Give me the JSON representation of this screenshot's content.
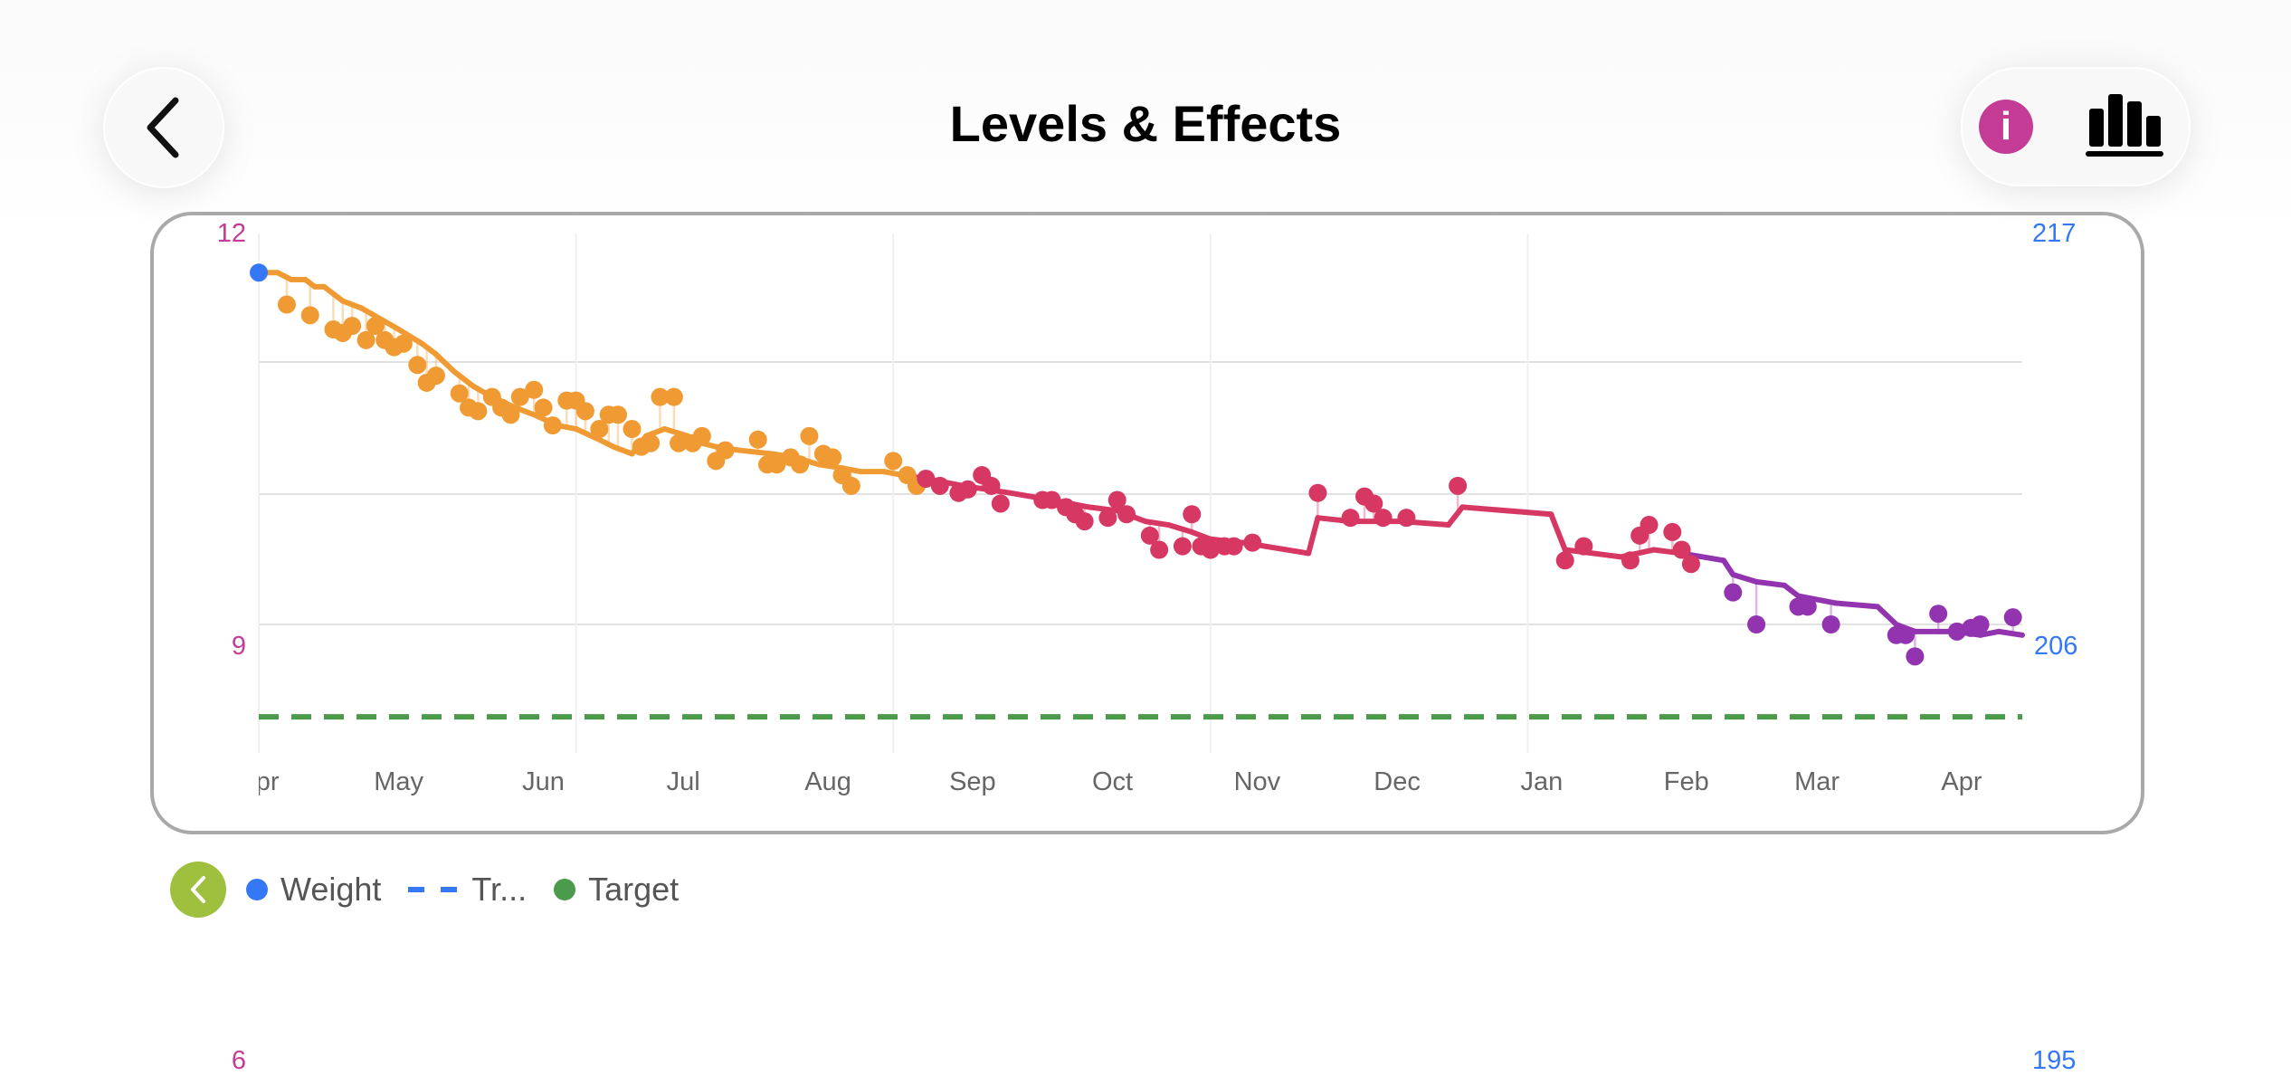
{
  "header": {
    "title": "Levels & Effects",
    "back_icon": "chevron-left-icon",
    "info_icon": "info-icon",
    "chart_icon": "bar-chart-icon"
  },
  "legend": {
    "collapse_icon": "chevron-left-icon",
    "items": [
      {
        "label": "Weight",
        "color": "#3478f6",
        "style": "dot"
      },
      {
        "label": "Tr...",
        "color": "#3478f6",
        "style": "dash"
      },
      {
        "label": "Target",
        "color": "#4c9a4c",
        "style": "dot"
      }
    ]
  },
  "next_chart_axis": {
    "left": "6",
    "right": "195"
  },
  "chart_data": {
    "type": "line",
    "left_axis": {
      "ticks": [
        "12",
        "9"
      ],
      "range": [
        12,
        9
      ],
      "color": "#c43c96"
    },
    "right_axis": {
      "ticks": [
        "217",
        "206"
      ],
      "ylim": [
        202.4,
        217
      ],
      "color": "#3478f6"
    },
    "x_labels": [
      "Apr",
      "May",
      "Jun",
      "Jul",
      "Aug",
      "Sep",
      "Oct",
      "Nov",
      "Dec",
      "Jan",
      "Feb",
      "Mar",
      "Apr"
    ],
    "xlim": [
      "Apr 1",
      "Apr 14"
    ],
    "grid": true,
    "target": 203.4,
    "target_color": "#4c9a4c",
    "start_marker_color": "#3478f6",
    "phase_colors": [
      "#f09a33",
      "#d63763",
      "#9233b0"
    ],
    "points": [
      [
        "Apr 7",
        215.0,
        0
      ],
      [
        "Apr 12",
        214.7,
        0
      ],
      [
        "Apr 17",
        214.3,
        0
      ],
      [
        "Apr 19",
        214.2,
        0
      ],
      [
        "Apr 21",
        214.4,
        0
      ],
      [
        "Apr 24",
        214.0,
        0
      ],
      [
        "Apr 26",
        214.4,
        0
      ],
      [
        "Apr 28",
        214.0,
        0
      ],
      [
        "Apr 30",
        213.8,
        0
      ],
      [
        "May 2",
        213.9,
        0
      ],
      [
        "May 5",
        213.3,
        0
      ],
      [
        "May 7",
        212.8,
        0
      ],
      [
        "May 9",
        213.0,
        0
      ],
      [
        "May 14",
        212.5,
        0
      ],
      [
        "May 16",
        212.1,
        0
      ],
      [
        "May 18",
        212.0,
        0
      ],
      [
        "May 21",
        212.4,
        0
      ],
      [
        "May 23",
        212.1,
        0
      ],
      [
        "May 25",
        211.9,
        0
      ],
      [
        "May 27",
        212.4,
        0
      ],
      [
        "May 30",
        212.6,
        0
      ],
      [
        "Jun 1",
        212.1,
        0
      ],
      [
        "Jun 3",
        211.6,
        0
      ],
      [
        "Jun 6",
        212.3,
        0
      ],
      [
        "Jun 8",
        212.3,
        0
      ],
      [
        "Jun 10",
        212.0,
        0
      ],
      [
        "Jun 13",
        211.5,
        0
      ],
      [
        "Jun 15",
        211.9,
        0
      ],
      [
        "Jun 17",
        211.9,
        0
      ],
      [
        "Jun 20",
        211.5,
        0
      ],
      [
        "Jun 22",
        211.0,
        0
      ],
      [
        "Jun 24",
        211.1,
        0
      ],
      [
        "Jun 26",
        212.4,
        0
      ],
      [
        "Jun 29",
        212.4,
        0
      ],
      [
        "Jun 30",
        211.1,
        0
      ],
      [
        "Jul 3",
        211.1,
        0
      ],
      [
        "Jul 5",
        211.3,
        0
      ],
      [
        "Jul 8",
        210.6,
        0
      ],
      [
        "Jul 10",
        210.9,
        0
      ],
      [
        "Jul 17",
        211.2,
        0
      ],
      [
        "Jul 19",
        210.5,
        0
      ],
      [
        "Jul 21",
        210.5,
        0
      ],
      [
        "Jul 24",
        210.7,
        0
      ],
      [
        "Jul 26",
        210.5,
        0
      ],
      [
        "Jul 28",
        211.3,
        0
      ],
      [
        "Jul 31",
        210.8,
        0
      ],
      [
        "Aug 2",
        210.7,
        0
      ],
      [
        "Aug 4",
        210.2,
        0
      ],
      [
        "Aug 6",
        209.9,
        0
      ],
      [
        "Aug 15",
        210.6,
        0
      ],
      [
        "Aug 18",
        210.2,
        0
      ],
      [
        "Aug 20",
        209.9,
        0
      ],
      [
        "Aug 22",
        210.1,
        1
      ],
      [
        "Aug 25",
        209.9,
        1
      ],
      [
        "Aug 29",
        209.7,
        1
      ],
      [
        "Aug 31",
        209.8,
        1
      ],
      [
        "Sep 3",
        210.2,
        1
      ],
      [
        "Sep 5",
        209.9,
        1
      ],
      [
        "Sep 7",
        209.4,
        1
      ],
      [
        "Sep 16",
        209.5,
        1
      ],
      [
        "Sep 18",
        209.5,
        1
      ],
      [
        "Sep 21",
        209.3,
        1
      ],
      [
        "Sep 23",
        209.1,
        1
      ],
      [
        "Sep 25",
        208.9,
        1
      ],
      [
        "Sep 30",
        209.0,
        1
      ],
      [
        "Oct 2",
        209.5,
        1
      ],
      [
        "Oct 4",
        209.1,
        1
      ],
      [
        "Oct 9",
        208.5,
        1
      ],
      [
        "Oct 11",
        208.1,
        1
      ],
      [
        "Oct 16",
        208.2,
        1
      ],
      [
        "Oct 18",
        209.1,
        1
      ],
      [
        "Oct 20",
        208.2,
        1
      ],
      [
        "Oct 22",
        208.1,
        1
      ],
      [
        "Oct 25",
        208.2,
        1
      ],
      [
        "Oct 27",
        208.2,
        1
      ],
      [
        "Oct 31",
        208.3,
        1
      ],
      [
        "Nov 14",
        209.7,
        1
      ],
      [
        "Nov 21",
        209.0,
        1
      ],
      [
        "Nov 24",
        209.6,
        1
      ],
      [
        "Nov 26",
        209.4,
        1
      ],
      [
        "Nov 28",
        209.0,
        1
      ],
      [
        "Dec 3",
        209.0,
        1
      ],
      [
        "Dec 14",
        209.9,
        1
      ],
      [
        "Jan 6",
        207.8,
        1
      ],
      [
        "Jan 10",
        208.2,
        1
      ],
      [
        "Jan 20",
        207.8,
        1
      ],
      [
        "Jan 22",
        208.5,
        1
      ],
      [
        "Jan 24",
        208.8,
        1
      ],
      [
        "Jan 29",
        208.6,
        1
      ],
      [
        "Jan 31",
        208.1,
        1
      ],
      [
        "Feb 2",
        207.7,
        1
      ],
      [
        "Feb 11",
        206.9,
        2
      ],
      [
        "Feb 16",
        206.0,
        2
      ],
      [
        "Feb 25",
        206.5,
        2
      ],
      [
        "Feb 27",
        206.5,
        2
      ],
      [
        "Mar 4",
        206.0,
        2
      ],
      [
        "Mar 18",
        205.7,
        2
      ],
      [
        "Mar 20",
        205.7,
        2
      ],
      [
        "Mar 22",
        205.1,
        2
      ],
      [
        "Mar 27",
        206.3,
        2
      ],
      [
        "Mar 31",
        205.8,
        2
      ],
      [
        "Apr 3",
        205.9,
        2
      ],
      [
        "Apr 5",
        206.0,
        2
      ],
      [
        "Apr 12",
        206.2,
        2
      ]
    ],
    "trend": [
      [
        "Apr 1",
        215.9,
        0
      ],
      [
        "Apr 5",
        215.9,
        0
      ],
      [
        "Apr 8",
        215.7,
        0
      ],
      [
        "Apr 11",
        215.7,
        0
      ],
      [
        "Apr 13",
        215.5,
        0
      ],
      [
        "Apr 15",
        215.5,
        0
      ],
      [
        "Apr 19",
        215.1,
        0
      ],
      [
        "Apr 23",
        214.9,
        0
      ],
      [
        "Apr 27",
        214.6,
        0
      ],
      [
        "May 1",
        214.3,
        0
      ],
      [
        "May 6",
        213.9,
        0
      ],
      [
        "May 9",
        213.6,
        0
      ],
      [
        "May 13",
        213.1,
        0
      ],
      [
        "May 17",
        212.7,
        0
      ],
      [
        "May 21",
        212.4,
        0
      ],
      [
        "May 26",
        212.1,
        0
      ],
      [
        "May 30",
        211.9,
        0
      ],
      [
        "Jun 4",
        211.6,
        0
      ],
      [
        "Jun 8",
        211.5,
        0
      ],
      [
        "Jun 13",
        211.2,
        0
      ],
      [
        "Jun 16",
        211.0,
        0
      ],
      [
        "Jun 20",
        210.8,
        0
      ],
      [
        "Jun 23",
        211.3,
        0
      ],
      [
        "Jun 27",
        211.5,
        0
      ],
      [
        "Jul 2",
        211.3,
        0
      ],
      [
        "Jul 5",
        211.1,
        0
      ],
      [
        "Jul 8",
        211.0,
        0
      ],
      [
        "Jul 13",
        210.9,
        0
      ],
      [
        "Jul 20",
        210.8,
        0
      ],
      [
        "Jul 25",
        210.7,
        0
      ],
      [
        "Jul 30",
        210.5,
        0
      ],
      [
        "Aug 4",
        210.4,
        0
      ],
      [
        "Aug 8",
        210.3,
        0
      ],
      [
        "Aug 13",
        210.3,
        0
      ],
      [
        "Aug 17",
        210.2,
        0
      ],
      [
        "Aug 22",
        210.1,
        1
      ],
      [
        "Aug 30",
        209.9,
        1
      ],
      [
        "Sep 9",
        209.7,
        1
      ],
      [
        "Sep 18",
        209.5,
        1
      ],
      [
        "Sep 26",
        209.3,
        1
      ],
      [
        "Oct 2",
        209.2,
        1
      ],
      [
        "Oct 8",
        208.9,
        1
      ],
      [
        "Oct 13",
        208.8,
        1
      ],
      [
        "Oct 18",
        208.6,
        1
      ],
      [
        "Oct 22",
        208.4,
        1
      ],
      [
        "Oct 29",
        208.3,
        1
      ],
      [
        "Nov 12",
        208.0,
        1
      ],
      [
        "Nov 14",
        209.0,
        1
      ],
      [
        "Nov 21",
        208.9,
        1
      ],
      [
        "Dec 2",
        208.9,
        1
      ],
      [
        "Dec 12",
        208.8,
        1
      ],
      [
        "Dec 15",
        209.3,
        1
      ],
      [
        "Jan 3",
        209.1,
        1
      ],
      [
        "Jan 6",
        208.1,
        1
      ],
      [
        "Jan 18",
        207.9,
        1
      ],
      [
        "Jan 25",
        208.1,
        1
      ],
      [
        "Jan 31",
        208.0,
        1
      ],
      [
        "Feb 9",
        207.8,
        2
      ],
      [
        "Feb 11",
        207.4,
        2
      ],
      [
        "Feb 16",
        207.2,
        2
      ],
      [
        "Feb 22",
        207.1,
        2
      ],
      [
        "Feb 25",
        206.8,
        2
      ],
      [
        "Mar 5",
        206.6,
        2
      ],
      [
        "Mar 14",
        206.5,
        2
      ],
      [
        "Mar 18",
        206.0,
        2
      ],
      [
        "Mar 22",
        205.8,
        2
      ],
      [
        "Mar 27",
        205.8,
        2
      ],
      [
        "Mar 31",
        205.8,
        2
      ],
      [
        "Apr 5",
        205.7,
        2
      ],
      [
        "Apr 9",
        205.8,
        2
      ],
      [
        "Apr 14",
        205.7,
        2
      ]
    ]
  }
}
